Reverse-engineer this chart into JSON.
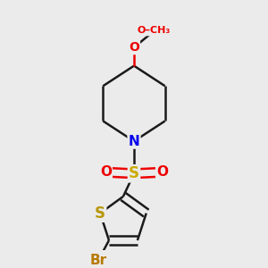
{
  "bg_color": "#ebebeb",
  "bond_color": "#1a1a1a",
  "bond_width": 1.8,
  "atom_colors": {
    "N": "#0000ee",
    "O": "#ee0000",
    "S_sulfonyl": "#ccaa00",
    "S_thio": "#b8960a",
    "Br": "#b87a00",
    "C": "#1a1a1a"
  },
  "font_size": 11,
  "fig_size": [
    3.0,
    3.0
  ],
  "dpi": 100,
  "xlim": [
    0.15,
    0.85
  ],
  "ylim": [
    0.05,
    0.97
  ]
}
